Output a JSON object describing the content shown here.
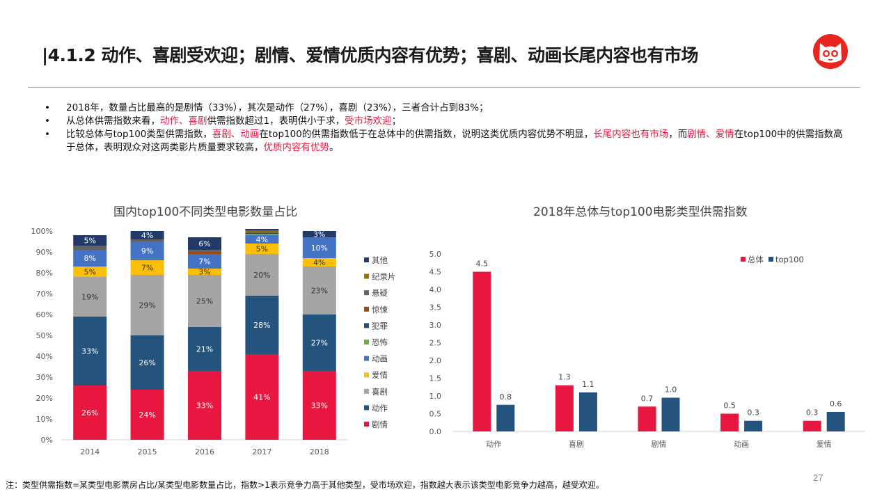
{
  "header": {
    "title": "|4.1.2 动作、喜剧受欢迎；剧情、爱情优质内容有优势；喜剧、动画长尾内容也有市场"
  },
  "bullets": {
    "b1": "2018年，数量占比最高的是剧情（33%），其次是动作（27%），喜剧（23%），三者合计占到83%；",
    "b2_p1": "从总体供需指数来看，",
    "b2_r1": "动作、喜剧",
    "b2_p2": "供需指数超过1，表明供小于求，",
    "b2_r2": "受市场欢迎",
    "b2_p3": "；",
    "b3_p1": "比较总体与top100类型供需指数，",
    "b3_r1": "喜剧、动画",
    "b3_p2": "在top100的供需指数低于在总体中的供需指数，说明这类优质内容优势不明显，",
    "b3_r2": "长尾内容也有市场",
    "b3_p3": "，而",
    "b3_r3": "剧情、爱情",
    "b3_p4": "在top100中的供需指数高于总体，表明观众对这两类影片质量要求较高，",
    "b3_r4": "优质内容有优势",
    "b3_p5": "。"
  },
  "footnote": "注：类型供需指数=某类型电影票房占比/某类型电影数量占比，指数>1表示竞争力高于其他类型，受市场欢迎，指数越大表示该类型电影竞争力越高，越受欢迎。",
  "page_number": "27",
  "colors": {
    "剧情": "#e8173f",
    "动作": "#24537e",
    "喜剧": "#a5a5a5",
    "爱情": "#fbbf0b",
    "动画": "#4472c4",
    "恐怖": "#70ad47",
    "犯罪": "#264c79",
    "惊悚": "#9e480e",
    "悬疑": "#636363",
    "纪录片": "#997300",
    "其他": "#223a6a",
    "总体": "#e8173f",
    "top100": "#24537e"
  },
  "chart_data": [
    {
      "type": "bar",
      "stacked": true,
      "title": "国内top100不同类型电影数量占比",
      "categories": [
        "2014",
        "2015",
        "2016",
        "2017",
        "2018"
      ],
      "ylim": [
        0,
        100
      ],
      "yticks": [
        "0%",
        "10%",
        "20%",
        "30%",
        "40%",
        "50%",
        "60%",
        "70%",
        "80%",
        "90%",
        "100%"
      ],
      "series": [
        {
          "name": "剧情",
          "values": [
            26,
            24,
            33,
            41,
            33
          ],
          "labels": [
            "26%",
            "24%",
            "33%",
            "41%",
            "33%"
          ]
        },
        {
          "name": "动作",
          "values": [
            33,
            26,
            21,
            28,
            27
          ],
          "labels": [
            "33%",
            "26%",
            "21%",
            "28%",
            "27%"
          ]
        },
        {
          "name": "喜剧",
          "values": [
            19,
            29,
            25,
            20,
            23
          ],
          "labels": [
            "19%",
            "29%",
            "25%",
            "20%",
            "23%"
          ]
        },
        {
          "name": "爱情",
          "values": [
            5,
            7,
            3,
            5,
            4
          ],
          "labels": [
            "5%",
            "7%",
            "3%",
            "5%",
            "4%"
          ]
        },
        {
          "name": "动画",
          "values": [
            8,
            9,
            7,
            4,
            10
          ],
          "labels": [
            "8%",
            "9%",
            "7%",
            "4%",
            "10%"
          ]
        },
        {
          "name": "恐怖",
          "values": [
            0,
            0,
            0,
            0.6,
            0
          ],
          "labels": [
            "",
            "",
            "",
            "",
            ""
          ]
        },
        {
          "name": "犯罪",
          "values": [
            0,
            0,
            0,
            0.6,
            0
          ],
          "labels": [
            "",
            "",
            "",
            "",
            ""
          ]
        },
        {
          "name": "惊悚",
          "values": [
            0,
            0,
            1,
            0,
            0
          ],
          "labels": [
            "",
            "",
            "",
            "",
            ""
          ]
        },
        {
          "name": "悬疑",
          "values": [
            2,
            1,
            1,
            0,
            0
          ],
          "labels": [
            "",
            "",
            "",
            "",
            ""
          ]
        },
        {
          "name": "纪录片",
          "values": [
            0,
            0,
            0,
            1,
            0
          ],
          "labels": [
            "",
            "",
            "",
            "",
            ""
          ]
        },
        {
          "name": "其他",
          "values": [
            5,
            4,
            6,
            0.8,
            3
          ],
          "labels": [
            "5%",
            "4%",
            "6%",
            "",
            "3%"
          ]
        }
      ],
      "legend": [
        "其他",
        "纪录片",
        "悬疑",
        "惊悚",
        "犯罪",
        "恐怖",
        "动画",
        "爱情",
        "喜剧",
        "动作",
        "剧情"
      ],
      "legend_position": "right"
    },
    {
      "type": "bar",
      "title": "2018年总体与top100电影类型供需指数",
      "categories": [
        "动作",
        "喜剧",
        "剧情",
        "动画",
        "爱情"
      ],
      "ylim": [
        0,
        5
      ],
      "yticks": [
        "0.0",
        "0.5",
        "1.0",
        "1.5",
        "2.0",
        "2.5",
        "3.0",
        "3.5",
        "4.0",
        "4.5",
        "5.0"
      ],
      "series": [
        {
          "name": "总体",
          "values": [
            4.5,
            1.3,
            0.7,
            0.5,
            0.3
          ],
          "labels": [
            "4.5",
            "1.3",
            "0.7",
            "0.5",
            "0.3"
          ]
        },
        {
          "name": "top100",
          "values": [
            0.75,
            1.1,
            0.95,
            0.3,
            0.55
          ],
          "labels": [
            "0.8",
            "1.1",
            "1.0",
            "0.3",
            "0.6"
          ]
        }
      ],
      "legend": [
        "总体",
        "top100"
      ],
      "legend_position": "top-right"
    }
  ]
}
